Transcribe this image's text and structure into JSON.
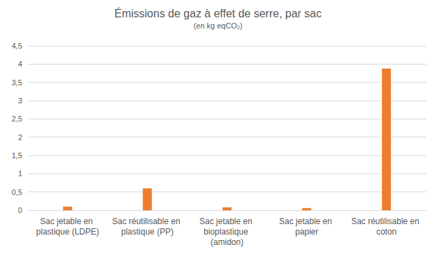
{
  "chart_data": {
    "type": "bar",
    "title": "Émissions de gaz à effet de serre, par sac",
    "subtitle": "(en kg eqCO₂)",
    "categories": [
      "Sac jetable en plastique (LDPE)",
      "Sac réutilisable en plastique (PP)",
      "Sac jetable en bioplastique (amidon)",
      "Sac jetable en papier",
      "Sac réutilisable en coton"
    ],
    "values": [
      0.1,
      0.6,
      0.08,
      0.06,
      3.88
    ],
    "color": "#ed7d31",
    "ylim": [
      0,
      4.5
    ],
    "yticks": [
      0,
      {
        "value": 0.5,
        "label": "0,5"
      },
      1,
      {
        "value": 1.5,
        "label": "1,5"
      },
      2,
      {
        "value": 2.5,
        "label": "2,5"
      },
      3,
      {
        "value": 3.5,
        "label": "3,5"
      },
      4,
      {
        "value": 4.5,
        "label": "4,5"
      }
    ],
    "grid": true
  }
}
